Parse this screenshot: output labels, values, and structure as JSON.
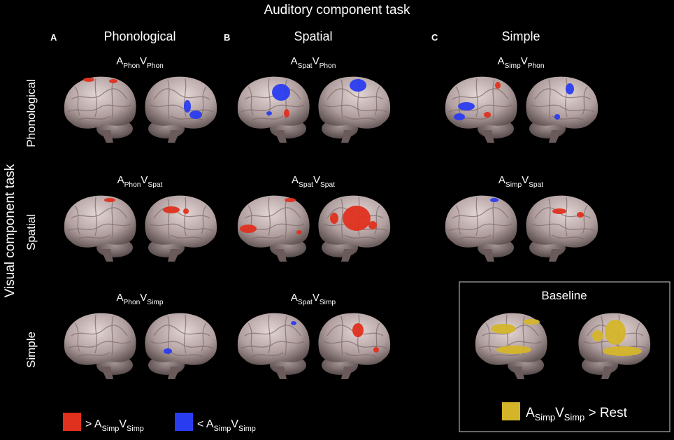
{
  "title": "Auditory component task",
  "side_title": "Visual component task",
  "columns": [
    {
      "letter": "A",
      "label": "Phonological"
    },
    {
      "letter": "B",
      "label": "Spatial"
    },
    {
      "letter": "C",
      "label": "Simple"
    }
  ],
  "rows": [
    "Phonological",
    "Spatial",
    "Simple"
  ],
  "cells": [
    {
      "a": "A",
      "a_sub": "Phon",
      "v": "V",
      "v_sub": "Phon"
    },
    {
      "a": "A",
      "a_sub": "Spat",
      "v": "V",
      "v_sub": "Phon"
    },
    {
      "a": "A",
      "a_sub": "Simp",
      "v": "V",
      "v_sub": "Phon"
    },
    {
      "a": "A",
      "a_sub": "Phon",
      "v": "V",
      "v_sub": "Spat"
    },
    {
      "a": "A",
      "a_sub": "Spat",
      "v": "V",
      "v_sub": "Spat"
    },
    {
      "a": "A",
      "a_sub": "Simp",
      "v": "V",
      "v_sub": "Spat"
    },
    {
      "a": "A",
      "a_sub": "Phon",
      "v": "V",
      "v_sub": "Simp"
    },
    {
      "a": "A",
      "a_sub": "Spat",
      "v": "V",
      "v_sub": "Simp"
    }
  ],
  "baseline": {
    "title": "Baseline",
    "a": "A",
    "a_sub": "Simp",
    "v": "V",
    "v_sub": "Simp",
    "suffix": "> Rest"
  },
  "legend": [
    {
      "prefix": ">",
      "a": "A",
      "a_sub": "Simp",
      "v": "V",
      "v_sub": "Simp"
    },
    {
      "prefix": "<",
      "a": "A",
      "a_sub": "Simp",
      "v": "V",
      "v_sub": "Simp"
    }
  ]
}
